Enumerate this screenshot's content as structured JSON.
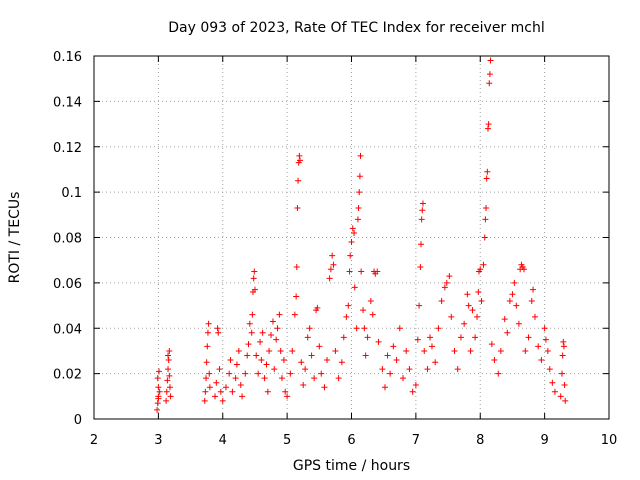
{
  "chart_data": {
    "type": "scatter",
    "title": "Day 093 of 2023, Rate Of TEC Index for receiver mchl",
    "xlabel": "GPS time / hours",
    "ylabel": "ROTI / TECUs",
    "xlim": [
      2,
      10
    ],
    "ylim": [
      0,
      0.16
    ],
    "x_ticks": [
      2,
      3,
      4,
      5,
      6,
      7,
      8,
      9,
      10
    ],
    "y_ticks": [
      0,
      0.02,
      0.04,
      0.06,
      0.08,
      0.1,
      0.12,
      0.14,
      0.16
    ],
    "x_tick_labels": [
      "2",
      "3",
      "4",
      "5",
      "6",
      "7",
      "8",
      "9",
      "10"
    ],
    "y_tick_labels": [
      "0",
      "0.02",
      "0.04",
      "0.06",
      "0.08",
      "0.1",
      "0.12",
      "0.14",
      "0.16"
    ],
    "grid": true,
    "marker": "+",
    "color": "#ff0000",
    "series": [
      {
        "name": "ROTI",
        "points": [
          [
            2.98,
            0.004
          ],
          [
            2.99,
            0.007
          ],
          [
            3.0,
            0.01
          ],
          [
            3.0,
            0.014
          ],
          [
            2.99,
            0.018
          ],
          [
            3.01,
            0.021
          ],
          [
            3.02,
            0.012
          ],
          [
            3.0,
            0.009
          ],
          [
            3.12,
            0.008
          ],
          [
            3.13,
            0.012
          ],
          [
            3.14,
            0.017
          ],
          [
            3.15,
            0.022
          ],
          [
            3.16,
            0.026
          ],
          [
            3.17,
            0.03
          ],
          [
            3.18,
            0.014
          ],
          [
            3.19,
            0.01
          ],
          [
            3.17,
            0.019
          ],
          [
            3.15,
            0.028
          ],
          [
            3.72,
            0.008
          ],
          [
            3.73,
            0.012
          ],
          [
            3.74,
            0.018
          ],
          [
            3.75,
            0.025
          ],
          [
            3.76,
            0.032
          ],
          [
            3.77,
            0.038
          ],
          [
            3.78,
            0.042
          ],
          [
            3.79,
            0.02
          ],
          [
            3.8,
            0.014
          ],
          [
            3.88,
            0.01
          ],
          [
            3.9,
            0.016
          ],
          [
            3.92,
            0.04
          ],
          [
            3.93,
            0.038
          ],
          [
            3.95,
            0.022
          ],
          [
            3.97,
            0.012
          ],
          [
            4.0,
            0.008
          ],
          [
            4.05,
            0.014
          ],
          [
            4.1,
            0.02
          ],
          [
            4.12,
            0.026
          ],
          [
            4.15,
            0.012
          ],
          [
            4.2,
            0.018
          ],
          [
            4.22,
            0.024
          ],
          [
            4.25,
            0.03
          ],
          [
            4.28,
            0.015
          ],
          [
            4.3,
            0.01
          ],
          [
            4.35,
            0.02
          ],
          [
            4.38,
            0.028
          ],
          [
            4.4,
            0.033
          ],
          [
            4.42,
            0.042
          ],
          [
            4.45,
            0.038
          ],
          [
            4.46,
            0.046
          ],
          [
            4.47,
            0.056
          ],
          [
            4.48,
            0.062
          ],
          [
            4.49,
            0.065
          ],
          [
            4.5,
            0.057
          ],
          [
            4.52,
            0.028
          ],
          [
            4.55,
            0.02
          ],
          [
            4.58,
            0.034
          ],
          [
            4.6,
            0.026
          ],
          [
            4.62,
            0.038
          ],
          [
            4.65,
            0.018
          ],
          [
            4.68,
            0.024
          ],
          [
            4.7,
            0.012
          ],
          [
            4.72,
            0.03
          ],
          [
            4.75,
            0.037
          ],
          [
            4.78,
            0.043
          ],
          [
            4.8,
            0.022
          ],
          [
            4.83,
            0.035
          ],
          [
            4.85,
            0.04
          ],
          [
            4.88,
            0.046
          ],
          [
            4.9,
            0.03
          ],
          [
            4.92,
            0.018
          ],
          [
            4.95,
            0.026
          ],
          [
            4.97,
            0.012
          ],
          [
            5.0,
            0.01
          ],
          [
            5.05,
            0.02
          ],
          [
            5.08,
            0.03
          ],
          [
            5.12,
            0.046
          ],
          [
            5.14,
            0.054
          ],
          [
            5.15,
            0.067
          ],
          [
            5.16,
            0.093
          ],
          [
            5.17,
            0.105
          ],
          [
            5.18,
            0.113
          ],
          [
            5.19,
            0.116
          ],
          [
            5.2,
            0.114
          ],
          [
            5.22,
            0.025
          ],
          [
            5.25,
            0.015
          ],
          [
            5.28,
            0.022
          ],
          [
            5.32,
            0.036
          ],
          [
            5.35,
            0.04
          ],
          [
            5.38,
            0.028
          ],
          [
            5.42,
            0.018
          ],
          [
            5.45,
            0.048
          ],
          [
            5.47,
            0.049
          ],
          [
            5.5,
            0.032
          ],
          [
            5.53,
            0.02
          ],
          [
            5.58,
            0.014
          ],
          [
            5.62,
            0.026
          ],
          [
            5.66,
            0.062
          ],
          [
            5.68,
            0.066
          ],
          [
            5.7,
            0.072
          ],
          [
            5.72,
            0.068
          ],
          [
            5.75,
            0.03
          ],
          [
            5.8,
            0.018
          ],
          [
            5.85,
            0.025
          ],
          [
            5.88,
            0.036
          ],
          [
            5.92,
            0.045
          ],
          [
            5.95,
            0.05
          ],
          [
            5.97,
            0.065
          ],
          [
            5.98,
            0.072
          ],
          [
            6.0,
            0.078
          ],
          [
            6.02,
            0.084
          ],
          [
            6.04,
            0.082
          ],
          [
            6.05,
            0.058
          ],
          [
            6.08,
            0.04
          ],
          [
            6.1,
            0.088
          ],
          [
            6.11,
            0.093
          ],
          [
            6.12,
            0.1
          ],
          [
            6.13,
            0.107
          ],
          [
            6.14,
            0.116
          ],
          [
            6.15,
            0.065
          ],
          [
            6.18,
            0.048
          ],
          [
            6.2,
            0.04
          ],
          [
            6.22,
            0.028
          ],
          [
            6.25,
            0.036
          ],
          [
            6.3,
            0.052
          ],
          [
            6.33,
            0.046
          ],
          [
            6.35,
            0.065
          ],
          [
            6.37,
            0.064
          ],
          [
            6.4,
            0.065
          ],
          [
            6.42,
            0.034
          ],
          [
            6.48,
            0.022
          ],
          [
            6.52,
            0.014
          ],
          [
            6.56,
            0.028
          ],
          [
            6.6,
            0.02
          ],
          [
            6.65,
            0.032
          ],
          [
            6.7,
            0.026
          ],
          [
            6.75,
            0.04
          ],
          [
            6.8,
            0.018
          ],
          [
            6.85,
            0.03
          ],
          [
            6.9,
            0.022
          ],
          [
            6.95,
            0.012
          ],
          [
            7.0,
            0.015
          ],
          [
            7.03,
            0.035
          ],
          [
            7.05,
            0.05
          ],
          [
            7.07,
            0.067
          ],
          [
            7.08,
            0.077
          ],
          [
            7.09,
            0.088
          ],
          [
            7.1,
            0.092
          ],
          [
            7.11,
            0.095
          ],
          [
            7.13,
            0.03
          ],
          [
            7.18,
            0.022
          ],
          [
            7.22,
            0.036
          ],
          [
            7.25,
            0.032
          ],
          [
            7.3,
            0.025
          ],
          [
            7.35,
            0.04
          ],
          [
            7.4,
            0.052
          ],
          [
            7.45,
            0.058
          ],
          [
            7.48,
            0.06
          ],
          [
            7.52,
            0.063
          ],
          [
            7.55,
            0.045
          ],
          [
            7.6,
            0.03
          ],
          [
            7.65,
            0.022
          ],
          [
            7.7,
            0.036
          ],
          [
            7.75,
            0.042
          ],
          [
            7.8,
            0.055
          ],
          [
            7.82,
            0.05
          ],
          [
            7.85,
            0.03
          ],
          [
            7.88,
            0.048
          ],
          [
            7.92,
            0.036
          ],
          [
            7.95,
            0.045
          ],
          [
            7.97,
            0.056
          ],
          [
            7.98,
            0.065
          ],
          [
            8.0,
            0.066
          ],
          [
            8.02,
            0.052
          ],
          [
            8.05,
            0.068
          ],
          [
            8.07,
            0.08
          ],
          [
            8.08,
            0.088
          ],
          [
            8.09,
            0.093
          ],
          [
            8.1,
            0.106
          ],
          [
            8.11,
            0.109
          ],
          [
            8.12,
            0.128
          ],
          [
            8.13,
            0.13
          ],
          [
            8.14,
            0.148
          ],
          [
            8.15,
            0.152
          ],
          [
            8.16,
            0.158
          ],
          [
            8.18,
            0.033
          ],
          [
            8.22,
            0.026
          ],
          [
            8.28,
            0.02
          ],
          [
            8.32,
            0.03
          ],
          [
            8.38,
            0.044
          ],
          [
            8.42,
            0.038
          ],
          [
            8.46,
            0.052
          ],
          [
            8.5,
            0.055
          ],
          [
            8.53,
            0.06
          ],
          [
            8.56,
            0.05
          ],
          [
            8.6,
            0.042
          ],
          [
            8.62,
            0.066
          ],
          [
            8.64,
            0.068
          ],
          [
            8.66,
            0.067
          ],
          [
            8.68,
            0.066
          ],
          [
            8.7,
            0.03
          ],
          [
            8.75,
            0.036
          ],
          [
            8.8,
            0.052
          ],
          [
            8.82,
            0.057
          ],
          [
            8.85,
            0.045
          ],
          [
            8.9,
            0.032
          ],
          [
            8.95,
            0.026
          ],
          [
            9.0,
            0.04
          ],
          [
            9.02,
            0.035
          ],
          [
            9.05,
            0.03
          ],
          [
            9.08,
            0.022
          ],
          [
            9.12,
            0.016
          ],
          [
            9.16,
            0.012
          ],
          [
            9.25,
            0.01
          ],
          [
            9.27,
            0.02
          ],
          [
            9.28,
            0.028
          ],
          [
            9.29,
            0.034
          ],
          [
            9.3,
            0.032
          ],
          [
            9.31,
            0.015
          ],
          [
            9.32,
            0.008
          ]
        ]
      }
    ]
  }
}
